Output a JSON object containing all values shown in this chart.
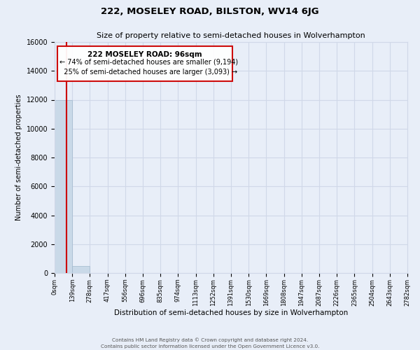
{
  "title": "222, MOSELEY ROAD, BILSTON, WV14 6JG",
  "subtitle": "Size of property relative to semi-detached houses in Wolverhampton",
  "xlabel": "Distribution of semi-detached houses by size in Wolverhampton",
  "ylabel": "Number of semi-detached properties",
  "bin_edges": [
    0,
    139,
    278,
    417,
    556,
    696,
    835,
    974,
    1113,
    1252,
    1391,
    1530,
    1669,
    1808,
    1947,
    2087,
    2226,
    2365,
    2504,
    2643,
    2782
  ],
  "bin_labels": [
    "0sqm",
    "139sqm",
    "278sqm",
    "417sqm",
    "556sqm",
    "696sqm",
    "835sqm",
    "974sqm",
    "1113sqm",
    "1252sqm",
    "1391sqm",
    "1530sqm",
    "1669sqm",
    "1808sqm",
    "1947sqm",
    "2087sqm",
    "2226sqm",
    "2365sqm",
    "2504sqm",
    "2643sqm",
    "2782sqm"
  ],
  "bar_heights": [
    12000,
    500,
    0,
    0,
    0,
    0,
    0,
    0,
    0,
    0,
    0,
    0,
    0,
    0,
    0,
    0,
    0,
    0,
    0,
    0
  ],
  "bar_color": "#c9d9e8",
  "bar_edgecolor": "#a0b8cc",
  "ylim": [
    0,
    16000
  ],
  "yticks": [
    0,
    2000,
    4000,
    6000,
    8000,
    10000,
    12000,
    14000,
    16000
  ],
  "property_label": "222 MOSELEY ROAD: 96sqm",
  "pct_smaller": 74,
  "pct_smaller_count": 9194,
  "pct_larger": 25,
  "pct_larger_count": 3093,
  "vline_x": 96,
  "vline_color": "#cc0000",
  "annotation_box_edgecolor": "#cc0000",
  "grid_color": "#d0d8e8",
  "background_color": "#e8eef8",
  "footer1": "Contains HM Land Registry data © Crown copyright and database right 2024.",
  "footer2": "Contains public sector information licensed under the Open Government Licence v3.0."
}
